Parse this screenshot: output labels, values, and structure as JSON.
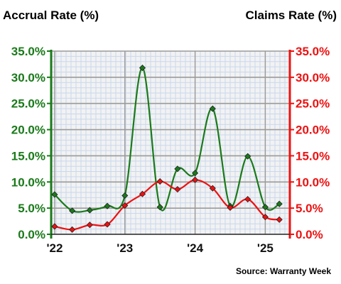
{
  "chart_data": {
    "type": "line",
    "title_left": "Accrual Rate (%)",
    "title_right": "Claims Rate (%)",
    "source": "Source: Warranty Week",
    "x_ticks": [
      "'22",
      "'23",
      "'24",
      "'25"
    ],
    "x_tick_positions": [
      2022.0,
      2023.0,
      2024.0,
      2025.0
    ],
    "xlim": [
      2021.95,
      2025.35
    ],
    "ylim_left": [
      0,
      35
    ],
    "ylim_right": [
      0,
      35
    ],
    "y_ticks_left": [
      "0.0%",
      "5.0%",
      "10.0%",
      "15.0%",
      "20.0%",
      "25.0%",
      "30.0%",
      "35.0%"
    ],
    "y_ticks_right": [
      "0.0%",
      "5.0%",
      "10.0%",
      "15.0%",
      "20.0%",
      "25.0%",
      "30.0%",
      "35.0%"
    ],
    "grid": true,
    "series": [
      {
        "name": "Accrual Rate (%)",
        "axis": "left",
        "color": "#1a7a1a",
        "x": [
          2022.0,
          2022.25,
          2022.5,
          2022.75,
          2023.0,
          2023.25,
          2023.5,
          2023.75,
          2024.0,
          2024.25,
          2024.5,
          2024.75,
          2025.0,
          2025.2
        ],
        "values": [
          7.6,
          4.5,
          4.6,
          5.4,
          7.4,
          31.8,
          5.2,
          12.5,
          11.7,
          24.0,
          5.4,
          14.9,
          5.2,
          5.8
        ]
      },
      {
        "name": "Claims Rate (%)",
        "axis": "right",
        "color": "#ee1111",
        "x": [
          2022.0,
          2022.25,
          2022.5,
          2022.75,
          2023.0,
          2023.25,
          2023.5,
          2023.75,
          2024.0,
          2024.25,
          2024.5,
          2024.75,
          2025.0,
          2025.2
        ],
        "values": [
          1.5,
          0.9,
          1.8,
          1.9,
          5.5,
          7.7,
          10.1,
          8.6,
          10.4,
          8.8,
          5.1,
          6.7,
          3.3,
          2.8
        ]
      }
    ],
    "colors": {
      "left_axis": "#1a7a1a",
      "right_axis": "#ee1111",
      "grid_minor": "#c8d8ee",
      "grid_major": "#9a9a9a",
      "plot_background": "#f2f2f2"
    }
  }
}
